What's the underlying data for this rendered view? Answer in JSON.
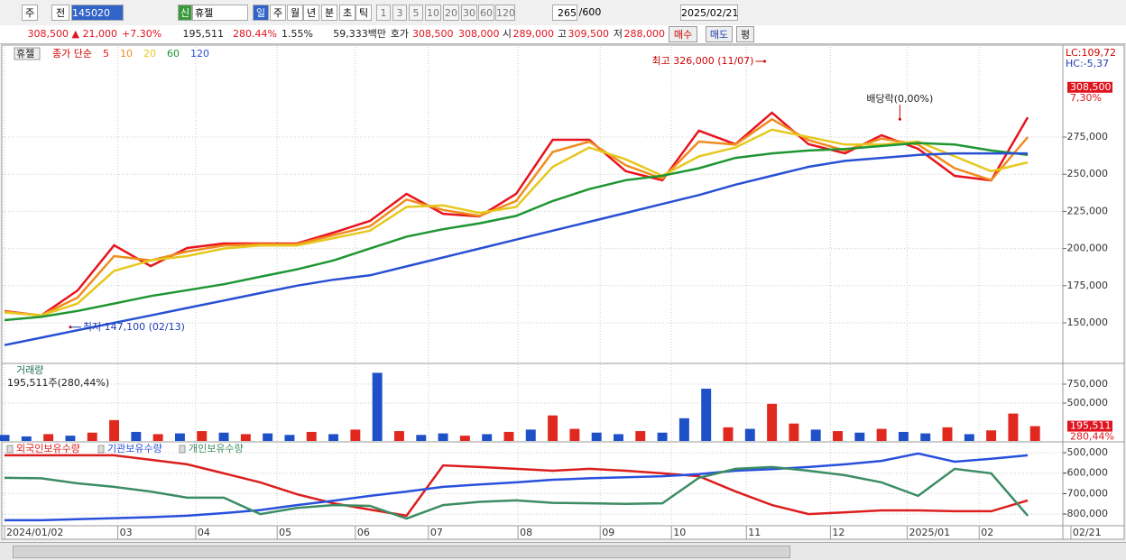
{
  "toolbar": {
    "row1": [
      "주",
      "전",
      "145020",
      "신",
      "휴젤",
      "일",
      "주",
      "월",
      "년",
      "분",
      "초",
      "틱",
      "1",
      "3",
      "5",
      "10",
      "20",
      "30",
      "60",
      "120",
      "265",
      "/600",
      "2025/02/21"
    ],
    "row2": [
      "308,500 ▲",
      "21,000",
      "+7.30%",
      "195,511",
      "280.44%",
      "1.55%",
      "59,333백만",
      "호가",
      "308,500",
      "308,000",
      "시",
      "289,000",
      "고",
      "309,500",
      "저",
      "288,000",
      "매수",
      "매도",
      "평"
    ]
  },
  "chart_data": [
    {
      "type": "line",
      "symbol": "휴젤",
      "legend_prefix": "종가 단순",
      "lc": "LC:109,72",
      "hc": "HC:-5,37",
      "last_label": {
        "value": 308500,
        "label": "308,500"
      },
      "change_label": "7,30%",
      "xlim": [
        -0.5,
        289.6
      ],
      "ylim": [
        123300,
        335700
      ],
      "yticks": [
        {
          "value": 150000,
          "label": "150,000"
        },
        {
          "value": 175000,
          "label": "175,000"
        },
        {
          "value": 200000,
          "label": "200,000"
        },
        {
          "value": 225000,
          "label": "225,000"
        },
        {
          "value": 250000,
          "label": "250,000"
        },
        {
          "value": 275000,
          "label": "275,000"
        }
      ],
      "grid": true,
      "annotations": [
        {
          "text": "최고 326,000 (11/07)",
          "x": 208,
          "y": 326000,
          "side": "left"
        },
        {
          "text": "최저 147,100 (02/13)",
          "x": 18,
          "y": 147100,
          "side": "right"
        },
        {
          "text": "배당락(0,00%)",
          "x": 245,
          "y": 287000,
          "side": "up"
        }
      ],
      "x": [
        0,
        10,
        20,
        30,
        40,
        50,
        60,
        70,
        80,
        90,
        100,
        110,
        120,
        130,
        140,
        150,
        160,
        170,
        180,
        190,
        200,
        210,
        220,
        230,
        240,
        250,
        260,
        270,
        280
      ],
      "series": [
        {
          "name": "5",
          "color": "#e8141e",
          "values": [
            157900,
            154900,
            171800,
            202200,
            188200,
            200400,
            203400,
            203400,
            203400,
            210700,
            218600,
            236800,
            223400,
            221600,
            236800,
            273200,
            273200,
            252000,
            245900,
            279300,
            270200,
            291400,
            270200,
            264100,
            276200,
            267100,
            248900,
            245900,
            288300
          ]
        },
        {
          "name": "10",
          "color": "#f08c1e",
          "values": [
            157500,
            155000,
            167000,
            195000,
            192000,
            198000,
            202000,
            203000,
            203000,
            209000,
            215000,
            233000,
            226000,
            222000,
            232000,
            265000,
            272000,
            256000,
            247000,
            272000,
            270000,
            287000,
            273000,
            266000,
            274000,
            270000,
            254000,
            246000,
            275000
          ]
        },
        {
          "name": "20",
          "color": "#e6c81e",
          "values": [
            157000,
            155000,
            163000,
            185000,
            192000,
            195000,
            200000,
            202000,
            202000,
            207000,
            212000,
            228000,
            229000,
            224000,
            228000,
            255000,
            268000,
            260000,
            249000,
            262000,
            268000,
            280000,
            275000,
            270000,
            270000,
            272000,
            262000,
            252000,
            258000
          ]
        },
        {
          "name": "60",
          "color": "#1e9632",
          "values": [
            151800,
            154000,
            158000,
            163000,
            168000,
            172000,
            176000,
            181000,
            186000,
            192000,
            200000,
            208000,
            213000,
            217000,
            222000,
            232000,
            240000,
            246000,
            249000,
            254000,
            261000,
            264000,
            266000,
            267000,
            269000,
            271000,
            270000,
            266000,
            263000
          ]
        },
        {
          "name": "120",
          "color": "#2850d2",
          "values": [
            135000,
            140000,
            145000,
            150000,
            155000,
            160000,
            165000,
            170000,
            175000,
            179000,
            182000,
            188000,
            194000,
            200000,
            206000,
            212000,
            218000,
            224000,
            230000,
            236000,
            243000,
            249000,
            255000,
            259000,
            261000,
            263000,
            264000,
            264000,
            264000
          ]
        }
      ]
    },
    {
      "type": "bar",
      "title": "거래량",
      "info": "195,511주(280,44%)",
      "last_label": {
        "value": 195511,
        "label": "195,511"
      },
      "change_label": "280,44%",
      "xlim": [
        -0.5,
        289.6
      ],
      "ylim": [
        0,
        1012000
      ],
      "yticks": [
        {
          "value": 500000,
          "label": "500,000"
        },
        {
          "value": 750000,
          "label": "750,000"
        }
      ],
      "grid": true,
      "x": [
        0,
        6,
        12,
        18,
        24,
        30,
        36,
        42,
        48,
        54,
        60,
        66,
        72,
        78,
        84,
        90,
        96,
        102,
        108,
        114,
        120,
        126,
        132,
        138,
        144,
        150,
        156,
        162,
        168,
        174,
        180,
        186,
        192,
        198,
        204,
        210,
        216,
        222,
        228,
        234,
        240,
        246,
        252,
        258,
        264,
        270,
        276,
        282
      ],
      "values": [
        80000,
        60000,
        90000,
        70000,
        110000,
        275000,
        120000,
        90000,
        100000,
        130000,
        110000,
        90000,
        100000,
        80000,
        120000,
        90000,
        150000,
        900000,
        130000,
        80000,
        100000,
        70000,
        90000,
        120000,
        150000,
        337000,
        160000,
        110000,
        90000,
        130000,
        110000,
        300000,
        690000,
        180000,
        160000,
        490000,
        230000,
        150000,
        130000,
        110000,
        160000,
        120000,
        100000,
        180000,
        90000,
        140000,
        362000,
        195511
      ],
      "colors": [
        "#1e50c8",
        "#1e50c8",
        "#e0281e",
        "#1e50c8",
        "#e0281e",
        "#e0281e",
        "#1e50c8",
        "#e0281e",
        "#1e50c8",
        "#e0281e",
        "#1e50c8",
        "#e0281e",
        "#1e50c8",
        "#1e50c8",
        "#e0281e",
        "#1e50c8",
        "#e0281e",
        "#1e50c8",
        "#e0281e",
        "#1e50c8",
        "#1e50c8",
        "#e0281e",
        "#1e50c8",
        "#e0281e",
        "#1e50c8",
        "#e0281e",
        "#e0281e",
        "#1e50c8",
        "#1e50c8",
        "#e0281e",
        "#1e50c8",
        "#1e50c8",
        "#1e50c8",
        "#e0281e",
        "#1e50c8",
        "#e0281e",
        "#e0281e",
        "#1e50c8",
        "#e0281e",
        "#1e50c8",
        "#e0281e",
        "#1e50c8",
        "#1e50c8",
        "#e0281e",
        "#1e50c8",
        "#e0281e",
        "#e0281e",
        "#e0281e"
      ]
    },
    {
      "type": "line",
      "xlim": [
        -0.5,
        289.6
      ],
      "ylim": [
        -852400,
        -456000
      ],
      "yticks": [
        {
          "value": -500000,
          "label": "-500,000"
        },
        {
          "value": -600000,
          "label": "-600,000"
        },
        {
          "value": -700000,
          "label": "-700,000"
        },
        {
          "value": -800000,
          "label": "-800,000"
        }
      ],
      "grid": true,
      "xticks": [
        {
          "value": 0,
          "label": "2024/01/02"
        },
        {
          "value": 31,
          "label": "03"
        },
        {
          "value": 52.3,
          "label": "04"
        },
        {
          "value": 74.6,
          "label": "05"
        },
        {
          "value": 96,
          "label": "06"
        },
        {
          "value": 116,
          "label": "07"
        },
        {
          "value": 140.5,
          "label": "08"
        },
        {
          "value": 163,
          "label": "09"
        },
        {
          "value": 182.5,
          "label": "10"
        },
        {
          "value": 203,
          "label": "11"
        },
        {
          "value": 226,
          "label": "12"
        },
        {
          "value": 247,
          "label": "2025/01"
        },
        {
          "value": 266.7,
          "label": "02"
        },
        {
          "value": 291.8,
          "label": "02/21"
        }
      ],
      "x": [
        0,
        10,
        20,
        30,
        40,
        50,
        60,
        70,
        80,
        90,
        100,
        110,
        120,
        130,
        140,
        150,
        160,
        170,
        180,
        190,
        200,
        210,
        220,
        230,
        240,
        250,
        260,
        270,
        280
      ],
      "series": [
        {
          "name": "외국인보유수량",
          "color": "#dc1e1e",
          "values": [
            -513000,
            -513000,
            -513000,
            -513000,
            -535000,
            -557000,
            -601000,
            -645000,
            -703000,
            -747000,
            -778000,
            -808000,
            -562000,
            -570000,
            -579000,
            -588000,
            -579000,
            -588000,
            -601000,
            -615000,
            -689000,
            -756000,
            -800000,
            -791000,
            -782000,
            -782000,
            -786000,
            -786000,
            -733000
          ]
        },
        {
          "name": "기관보유수량",
          "color": "#2850dc",
          "values": [
            -830000,
            -830000,
            -825000,
            -820000,
            -815000,
            -808000,
            -795000,
            -780000,
            -756000,
            -735000,
            -711000,
            -690000,
            -667000,
            -655000,
            -645000,
            -632000,
            -625000,
            -620000,
            -615000,
            -605000,
            -588000,
            -580000,
            -570000,
            -557000,
            -540000,
            -504000,
            -544000,
            -530000,
            -513000
          ]
        },
        {
          "name": "개인보유수량",
          "color": "#3c8c64",
          "values": [
            -623000,
            -625000,
            -650000,
            -667000,
            -690000,
            -720000,
            -720000,
            -800000,
            -770000,
            -756000,
            -760000,
            -822000,
            -756000,
            -740000,
            -733000,
            -745000,
            -747000,
            -750000,
            -747000,
            -623000,
            -579000,
            -570000,
            -588000,
            -610000,
            -645000,
            -711000,
            -579000,
            -601000,
            -808000
          ]
        }
      ]
    }
  ]
}
